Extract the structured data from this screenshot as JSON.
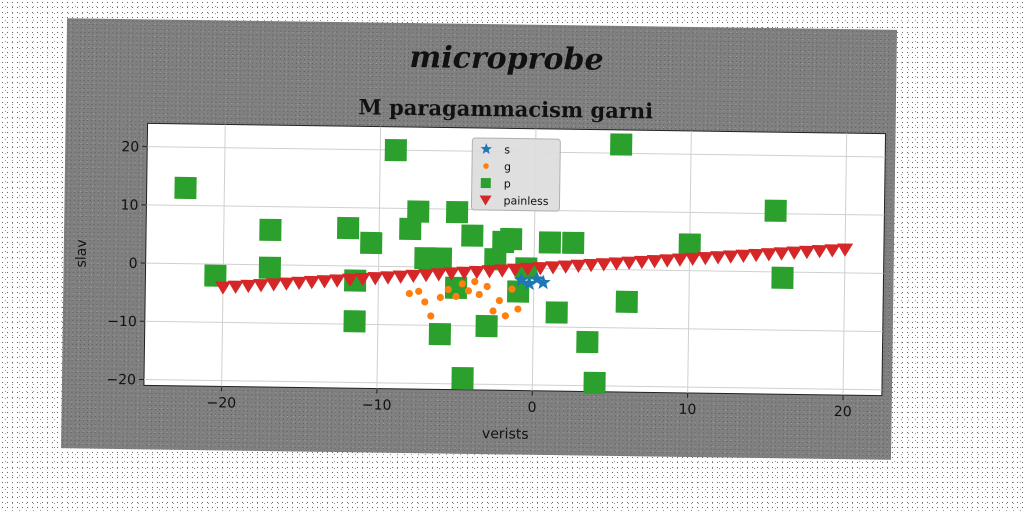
{
  "chart_data": {
    "type": "scatter",
    "suptitle": "microprobe",
    "title": "M paragammacism garni",
    "xlabel": "verists",
    "ylabel": "slav",
    "xlim": [
      -25,
      22.5
    ],
    "ylim": [
      -21,
      24
    ],
    "xticks": [
      -20,
      -10,
      0,
      10,
      20
    ],
    "yticks": [
      -20,
      -10,
      0,
      10,
      20
    ],
    "grid": true,
    "legend_position": "top-center",
    "series": [
      {
        "name": "s",
        "marker": "star",
        "color": "#1f77b4",
        "x": [
          -0.8,
          -0.3,
          0.2,
          0.6
        ],
        "y": [
          -2.0,
          -2.6,
          -1.8,
          -2.4
        ]
      },
      {
        "name": "g",
        "marker": "circle",
        "color": "#ff7f0e",
        "x": [
          -8.0,
          -7.4,
          -7.0,
          -6.6,
          -6.0,
          -5.5,
          -5.0,
          -4.6,
          -4.2,
          -3.8,
          -3.5,
          -3.0,
          -2.6,
          -2.2,
          -1.8,
          -1.4,
          -1.0
        ],
        "y": [
          -4.6,
          -4.2,
          -6.0,
          -8.4,
          -5.2,
          -3.8,
          -5.0,
          -2.8,
          -4.0,
          -2.4,
          -4.6,
          -3.2,
          -7.4,
          -5.6,
          -8.2,
          -3.6,
          -7.0
        ]
      },
      {
        "name": "p",
        "marker": "square",
        "color": "#2ca02c",
        "x": [
          -22.5,
          -20.5,
          -17.0,
          -17.0,
          -12.0,
          -11.5,
          -10.5,
          -9.0,
          -8.0,
          -7.5,
          -7.0,
          -6.0,
          -5.0,
          -4.5,
          -4.0,
          -3.0,
          -2.5,
          -2.0,
          -1.5,
          -1.0,
          -0.5,
          1.0,
          1.5,
          2.5,
          3.5,
          4.0,
          5.5,
          6.0,
          10.0,
          15.5,
          16.0,
          -11.5,
          -6.0,
          -5.0
        ],
        "y": [
          13.0,
          -2.0,
          6.0,
          -0.5,
          6.5,
          -9.5,
          4.0,
          20.0,
          6.5,
          9.5,
          1.5,
          1.5,
          9.5,
          -19.0,
          5.5,
          -10.0,
          1.5,
          4.5,
          5.0,
          -4.0,
          0.0,
          4.5,
          -7.5,
          4.5,
          -12.5,
          -19.5,
          21.5,
          -5.5,
          4.5,
          10.5,
          -1.0,
          -2.5,
          -11.5,
          -3.5
        ]
      },
      {
        "name": "painless",
        "marker": "triangle_down",
        "color": "#d62728",
        "x_start": -20.0,
        "x_end": 20.0,
        "y_start": -4.0,
        "y_end": 4.0,
        "count": 50
      }
    ]
  }
}
